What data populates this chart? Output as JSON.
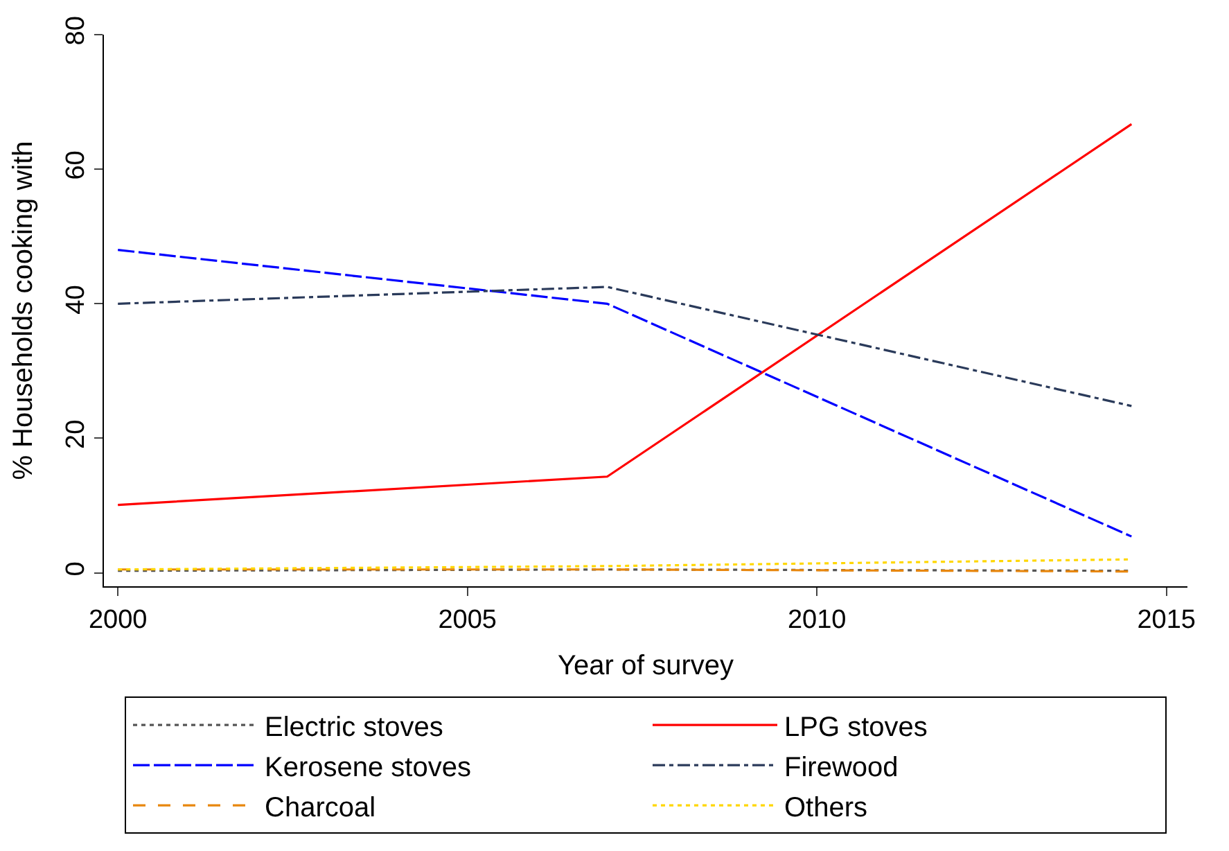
{
  "chart_data": {
    "type": "line",
    "xlabel": "Year of survey",
    "ylabel": "% Households cooking with",
    "x": [
      2000,
      2007,
      2014.5
    ],
    "series": [
      {
        "name": "Electric stoves",
        "color": "#555555",
        "line_style": "dotted",
        "values": [
          0.3,
          0.5,
          0.3
        ]
      },
      {
        "name": "LPG stoves",
        "color": "#ff0000",
        "line_style": "solid",
        "values": [
          10.1,
          14.3,
          66.7
        ]
      },
      {
        "name": "Kerosene stoves",
        "color": "#0000ff",
        "line_style": "longdash",
        "values": [
          48,
          40,
          5.4
        ]
      },
      {
        "name": "Firewood",
        "color": "#2a3a5a",
        "line_style": "dashdot",
        "values": [
          40,
          42.5,
          24.8
        ]
      },
      {
        "name": "Charcoal",
        "color": "#e8870e",
        "line_style": "dashed",
        "values": [
          0.5,
          0.5,
          0.2
        ]
      },
      {
        "name": "Others",
        "color": "#ffd700",
        "line_style": "dotted",
        "values": [
          0.5,
          1,
          2
        ]
      }
    ],
    "xlim": [
      1999.8,
      2015.3
    ],
    "xticks": [
      2000,
      2005,
      2010,
      2015
    ],
    "ylim": [
      -2,
      80
    ],
    "yticks": [
      0,
      20,
      40,
      60,
      80
    ],
    "legend": "bottom",
    "marker": "none"
  }
}
